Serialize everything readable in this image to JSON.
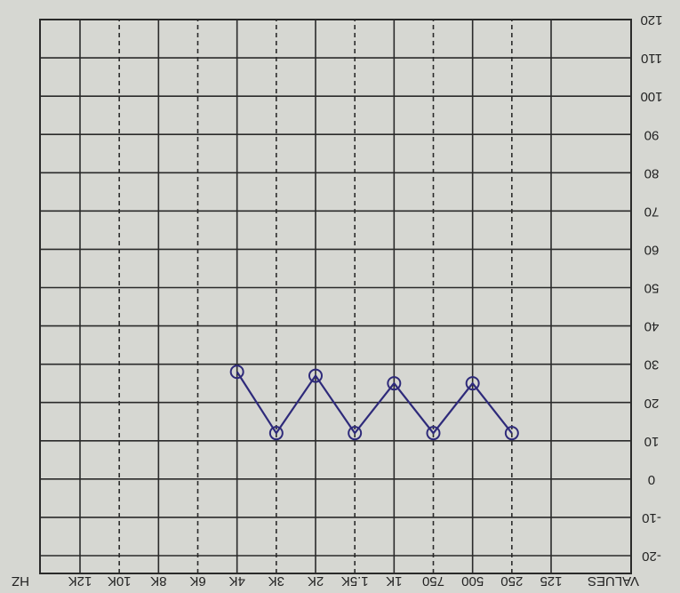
{
  "chart_data": {
    "type": "line",
    "row_label": "VALUES",
    "xlabel": "HZ",
    "categories": [
      "125",
      "250",
      "500",
      "750",
      "1K",
      "1.5K",
      "2K",
      "3K",
      "4K",
      "6K",
      "8K",
      "10K",
      "12K"
    ],
    "series": [
      {
        "color": "#2e2a7a",
        "values": [
          null,
          12,
          25,
          12,
          25,
          12,
          27,
          12,
          28,
          null,
          null,
          null,
          null
        ]
      }
    ],
    "ylim": [
      -20,
      120
    ],
    "yticks": [
      -20,
      -10,
      0,
      10,
      20,
      30,
      40,
      50,
      60,
      70,
      80,
      90,
      100,
      110,
      120
    ],
    "grid": true,
    "rotated": true
  }
}
